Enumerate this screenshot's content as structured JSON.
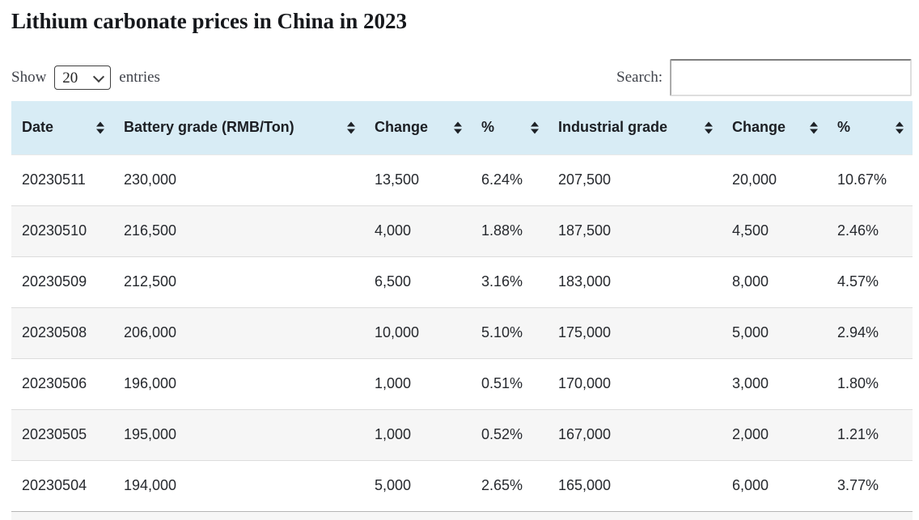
{
  "page": {
    "title": "Lithium carbonate prices in China in 2023"
  },
  "controls": {
    "show_label": "Show",
    "entries_label": "entries",
    "page_length_selected": "20",
    "search_label": "Search:",
    "search_value": "",
    "search_placeholder": ""
  },
  "table": {
    "columns": [
      {
        "key": "date",
        "label": "Date"
      },
      {
        "key": "battery-grade",
        "label": "Battery grade (RMB/Ton)"
      },
      {
        "key": "battery-change",
        "label": "Change"
      },
      {
        "key": "battery-percent",
        "label": "%"
      },
      {
        "key": "industrial-grade",
        "label": "Industrial grade"
      },
      {
        "key": "industrial-change",
        "label": "Change"
      },
      {
        "key": "industrial-percent",
        "label": "%"
      }
    ],
    "rows": [
      [
        "20230511",
        "230,000",
        "13,500",
        "6.24%",
        "207,500",
        "20,000",
        "10.67%"
      ],
      [
        "20230510",
        "216,500",
        "4,000",
        "1.88%",
        "187,500",
        "4,500",
        "2.46%"
      ],
      [
        "20230509",
        "212,500",
        "6,500",
        "3.16%",
        "183,000",
        "8,000",
        "4.57%"
      ],
      [
        "20230508",
        "206,000",
        "10,000",
        "5.10%",
        "175,000",
        "5,000",
        "2.94%"
      ],
      [
        "20230506",
        "196,000",
        "1,000",
        "0.51%",
        "170,000",
        "3,000",
        "1.80%"
      ],
      [
        "20230505",
        "195,000",
        "1,000",
        "0.52%",
        "167,000",
        "2,000",
        "1.21%"
      ],
      [
        "20230504",
        "194,000",
        "5,000",
        "2.65%",
        "165,000",
        "6,000",
        "3.77%"
      ]
    ]
  },
  "icons": {
    "sort_both": "sort-up-down-icon",
    "select_chevron": "chevron-down-icon"
  },
  "colors": {
    "header_bg": "#d8ecf5",
    "stripe_bg": "#f6f6f6",
    "row_border": "#dcdcdc",
    "table_bottom_border": "#b4b4b4",
    "text": "#26292e",
    "label_text": "#3f424a"
  }
}
